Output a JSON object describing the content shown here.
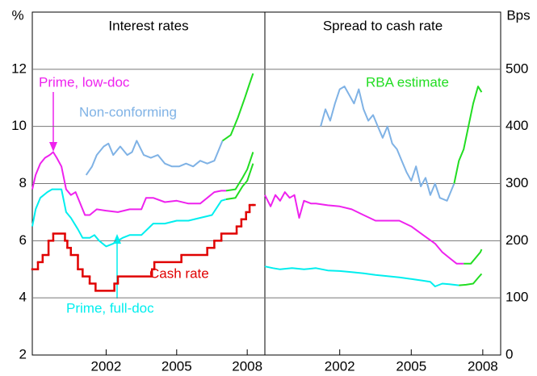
{
  "chart_data": [
    {
      "type": "line",
      "title": "Interest rates",
      "y_label": "%",
      "y_axis_side": "left",
      "grid": true,
      "xlim": [
        1998.86,
        2008.75
      ],
      "xticks": [
        2002,
        2005,
        2008
      ],
      "ylim": [
        2,
        14
      ],
      "yticks": [
        2,
        4,
        6,
        8,
        10,
        12
      ],
      "series": [
        {
          "name": "Prime, low-doc",
          "color": "#ee22ee",
          "x": [
            1998.86,
            1999.0,
            1999.2,
            1999.4,
            1999.6,
            1999.75,
            1999.9,
            2000.1,
            2000.3,
            2000.5,
            2000.7,
            2000.9,
            2001.1,
            2001.3,
            2001.6,
            2002.0,
            2002.5,
            2003.0,
            2003.5,
            2003.7,
            2004.0,
            2004.5,
            2005.0,
            2005.5,
            2006.0,
            2006.3,
            2006.6,
            2006.9,
            2007.1
          ],
          "values": [
            7.8,
            8.3,
            8.7,
            8.9,
            9.0,
            9.1,
            8.9,
            8.6,
            7.8,
            7.6,
            7.7,
            7.3,
            6.9,
            6.9,
            7.1,
            7.05,
            7.0,
            7.1,
            7.1,
            7.5,
            7.5,
            7.35,
            7.4,
            7.3,
            7.3,
            7.5,
            7.7,
            7.75,
            7.75
          ]
        },
        {
          "name": "Non-conforming",
          "color": "#7fb2e5",
          "x": [
            2001.15,
            2001.4,
            2001.6,
            2001.9,
            2002.1,
            2002.3,
            2002.6,
            2002.9,
            2003.1,
            2003.3,
            2003.6,
            2003.9,
            2004.2,
            2004.5,
            2004.8,
            2005.1,
            2005.4,
            2005.7,
            2006.0,
            2006.3,
            2006.6,
            2006.95
          ],
          "values": [
            8.3,
            8.6,
            9.0,
            9.3,
            9.4,
            9.0,
            9.3,
            9.0,
            9.1,
            9.5,
            9.0,
            8.9,
            9.0,
            8.7,
            8.6,
            8.6,
            8.7,
            8.6,
            8.8,
            8.7,
            8.8,
            9.5
          ]
        },
        {
          "name": "Cash rate",
          "color": "#e00000",
          "step": true,
          "x": [
            1998.86,
            1999.1,
            1999.3,
            1999.55,
            1999.75,
            2000.25,
            2000.35,
            2000.5,
            2000.8,
            2001.0,
            2001.3,
            2001.55,
            2002.35,
            2002.5,
            2003.95,
            2004.05,
            2005.2,
            2006.3,
            2006.6,
            2006.9,
            2007.55,
            2007.75,
            2007.95,
            2008.1,
            2008.25
          ],
          "values": [
            5.0,
            5.25,
            5.5,
            6.0,
            6.25,
            6.0,
            5.75,
            5.5,
            5.0,
            4.75,
            4.5,
            4.25,
            4.5,
            4.75,
            5.0,
            5.25,
            5.5,
            5.75,
            6.0,
            6.25,
            6.5,
            6.75,
            7.0,
            7.25,
            7.25
          ]
        },
        {
          "name": "Prime, full-doc",
          "color": "#00eeee",
          "x": [
            1998.86,
            1999.0,
            1999.2,
            1999.5,
            1999.7,
            2000.1,
            2000.3,
            2000.5,
            2000.8,
            2001.0,
            2001.3,
            2001.5,
            2001.7,
            2002.0,
            2002.3,
            2002.7,
            2003.0,
            2003.5,
            2004.0,
            2004.5,
            2005.0,
            2005.5,
            2006.0,
            2006.5,
            2006.9,
            2007.1
          ],
          "values": [
            6.5,
            7.1,
            7.5,
            7.7,
            7.8,
            7.8,
            7.0,
            6.8,
            6.4,
            6.1,
            6.1,
            6.2,
            6.0,
            5.8,
            5.9,
            6.1,
            6.2,
            6.2,
            6.6,
            6.6,
            6.7,
            6.7,
            6.8,
            6.9,
            7.4,
            7.45
          ]
        },
        {
          "color": "#22dd22",
          "x": [
            2006.95,
            2007.3,
            2007.6,
            2007.9,
            2008.1,
            2008.25,
            null,
            2007.1,
            2007.5,
            2007.8,
            2008.0,
            2008.25,
            null,
            2007.1,
            2007.5,
            2007.8,
            2008.0,
            2008.25
          ],
          "values": [
            9.5,
            9.7,
            10.3,
            11.0,
            11.5,
            11.85,
            null,
            7.75,
            7.8,
            8.2,
            8.5,
            9.1,
            null,
            7.45,
            7.5,
            7.9,
            8.1,
            8.7
          ]
        }
      ]
    },
    {
      "type": "line",
      "title": "Spread to cash rate",
      "y_label": "Bps",
      "y_axis_side": "right",
      "grid": true,
      "xlim": [
        1998.86,
        2008.75
      ],
      "xticks": [
        2002,
        2005,
        2008
      ],
      "ylim": [
        0,
        600
      ],
      "yticks": [
        0,
        100,
        200,
        300,
        400,
        500
      ],
      "series": [
        {
          "color": "#7fb2e5",
          "x": [
            2001.2,
            2001.4,
            2001.6,
            2001.8,
            2002.0,
            2002.2,
            2002.4,
            2002.6,
            2002.8,
            2003.0,
            2003.2,
            2003.4,
            2003.6,
            2003.8,
            2004.0,
            2004.2,
            2004.4,
            2004.6,
            2004.8,
            2005.0,
            2005.2,
            2005.4,
            2005.6,
            2005.8,
            2006.0,
            2006.2,
            2006.5,
            2006.8
          ],
          "values": [
            400,
            430,
            410,
            440,
            465,
            470,
            455,
            440,
            465,
            430,
            410,
            420,
            400,
            380,
            400,
            370,
            360,
            340,
            320,
            305,
            330,
            295,
            310,
            280,
            300,
            275,
            270,
            300
          ]
        },
        {
          "color": "#ee22ee",
          "x": [
            1998.86,
            1999.1,
            1999.3,
            1999.5,
            1999.7,
            1999.9,
            2000.1,
            2000.3,
            2000.5,
            2000.8,
            2001.0,
            2001.5,
            2002.0,
            2002.5,
            2003.0,
            2003.5,
            2004.0,
            2004.5,
            2005.0,
            2005.5,
            2006.0,
            2006.3,
            2006.6,
            2006.9,
            2007.2
          ],
          "values": [
            280,
            260,
            280,
            270,
            285,
            275,
            280,
            240,
            270,
            265,
            265,
            262,
            260,
            255,
            245,
            235,
            235,
            235,
            225,
            210,
            195,
            180,
            170,
            160,
            160
          ]
        },
        {
          "color": "#00eeee",
          "x": [
            1998.86,
            1999.2,
            1999.5,
            2000.0,
            2000.5,
            2001.0,
            2001.5,
            2002.0,
            2002.5,
            2003.0,
            2003.5,
            2004.0,
            2004.5,
            2005.0,
            2005.5,
            2005.8,
            2006.0,
            2006.3,
            2006.6,
            2007.0
          ],
          "values": [
            155,
            152,
            150,
            152,
            150,
            152,
            148,
            147,
            145,
            143,
            140,
            138,
            136,
            133,
            130,
            128,
            120,
            125,
            124,
            122
          ]
        },
        {
          "name": "RBA estimate",
          "color": "#22dd22",
          "x": [
            2006.8,
            2007.0,
            2007.2,
            2007.4,
            2007.6,
            2007.8,
            2007.95,
            null,
            2007.2,
            2007.5,
            2007.7,
            2007.9,
            2007.95,
            null,
            2007.0,
            2007.3,
            2007.6,
            2007.8,
            2007.95
          ],
          "values": [
            300,
            340,
            360,
            400,
            440,
            470,
            460,
            null,
            160,
            160,
            170,
            180,
            185,
            null,
            122,
            123,
            125,
            135,
            142
          ]
        }
      ]
    }
  ]
}
